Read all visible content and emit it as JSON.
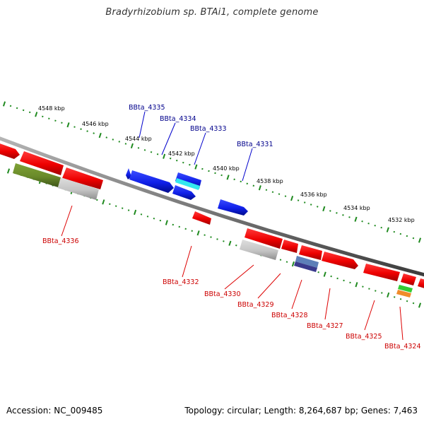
{
  "title": "Bradyrhizobium sp. BTAi1, complete genome",
  "footer": {
    "accession": "Accession: NC_009485",
    "summary": "Topology: circular; Length: 8,264,687 bp; Genes: 7,463"
  },
  "colors": {
    "backbone": "#7a7a7a",
    "tick": "#1f8a1f",
    "label_upper": "#00008b",
    "label_lower": "#cc0000",
    "leader_upper": "#0000cc",
    "leader_lower": "#dd0000"
  },
  "tick_labels": [
    {
      "text": "4548 kbp",
      "pos": 4548
    },
    {
      "text": "4546 kbp",
      "pos": 4546
    },
    {
      "text": "4544 kbp",
      "pos": 4544
    },
    {
      "text": "4542 kbp",
      "pos": 4542
    },
    {
      "text": "4540 kbp",
      "pos": 4540
    },
    {
      "text": "4538 kbp",
      "pos": 4538
    },
    {
      "text": "4536 kbp",
      "pos": 4536
    },
    {
      "text": "4534 kbp",
      "pos": 4534
    },
    {
      "text": "4532 kbp",
      "pos": 4532
    }
  ],
  "gene_labels": [
    {
      "id": "l4335",
      "text": "BBta_4335",
      "strand": "upper"
    },
    {
      "id": "l4334",
      "text": "BBta_4334",
      "strand": "upper"
    },
    {
      "id": "l4333",
      "text": "BBta_4333",
      "strand": "upper"
    },
    {
      "id": "l4331",
      "text": "BBta_4331",
      "strand": "upper"
    },
    {
      "id": "l4336",
      "text": "BBta_4336",
      "strand": "lower"
    },
    {
      "id": "l4332",
      "text": "BBta_4332",
      "strand": "lower"
    },
    {
      "id": "l4330",
      "text": "BBta_4330",
      "strand": "lower"
    },
    {
      "id": "l4329",
      "text": "BBta_4329",
      "strand": "lower"
    },
    {
      "id": "l4328",
      "text": "BBta_4328",
      "strand": "lower"
    },
    {
      "id": "l4327",
      "text": "BBta_4327",
      "strand": "lower"
    },
    {
      "id": "l4325",
      "text": "BBta_4325",
      "strand": "lower"
    },
    {
      "id": "l4324",
      "text": "BBta_4324",
      "strand": "lower"
    }
  ]
}
